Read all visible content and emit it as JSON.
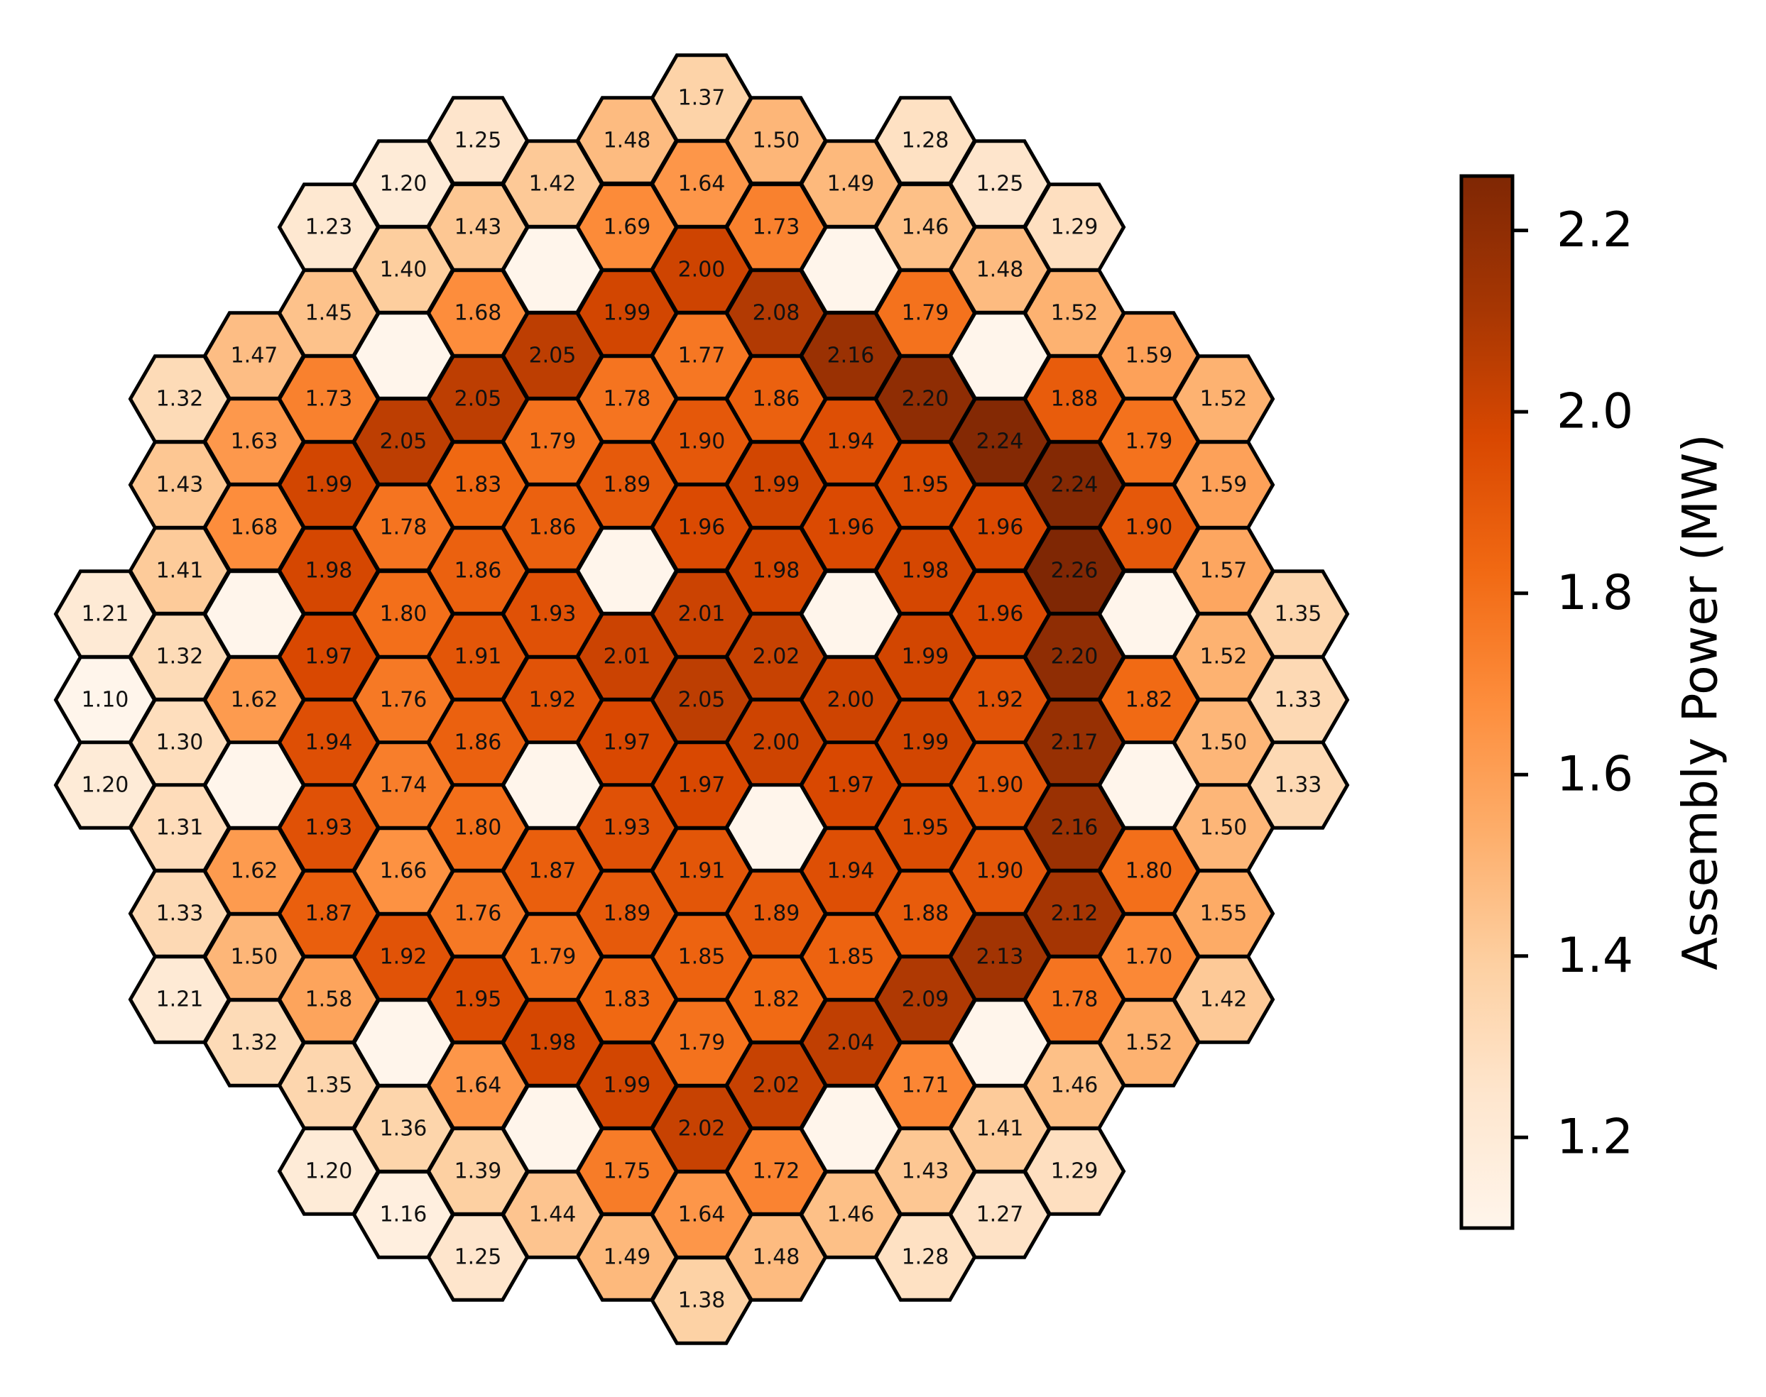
{
  "chart_data": {
    "type": "heatmap",
    "layout": "hexagonal core map",
    "title": "",
    "colorbar": {
      "label": "Assembly Power (MW)",
      "range": [
        1.1,
        2.26
      ],
      "ticks": [
        "1.2",
        "1.4",
        "1.6",
        "1.8",
        "2.0",
        "2.2"
      ],
      "colormap": "Oranges",
      "placement": "right"
    },
    "empty_cell_color": "#fff5eb",
    "columns": [
      {
        "col": -8,
        "values": [
          1.2,
          null,
          1.1,
          1.21
        ]
      },
      {
        "col": -7,
        "values": [
          1.31,
          1.3,
          1.32,
          1.41,
          1.43,
          1.32,
          1.21,
          1.33
        ]
      },
      {
        "col": -6,
        "values": [
          1.62,
          null,
          1.62,
          null,
          1.68,
          1.63,
          1.47,
          1.32,
          1.5,
          1.62
        ]
      },
      {
        "col": -5,
        "values": [
          1.93,
          1.94,
          1.97,
          1.98,
          1.99,
          1.73,
          1.45,
          1.35,
          1.58,
          1.87,
          null,
          1.23
        ]
      },
      {
        "col": -4,
        "values": [
          1.74,
          1.76,
          1.8,
          1.78,
          2.05,
          null,
          1.4,
          1.2,
          1.36,
          null,
          1.92,
          1.66,
          1.2,
          1.16
        ]
      },
      {
        "col": -3,
        "values": [
          1.8,
          1.86,
          1.91,
          1.86,
          1.83,
          2.05,
          1.68,
          1.43,
          1.25,
          1.39,
          1.64,
          1.95,
          1.76,
          1.25,
          1.44,
          1.44
        ]
      },
      {
        "col": -2,
        "values": [
          null,
          1.92,
          1.93,
          1.86,
          1.79,
          2.05,
          null,
          1.42,
          null,
          1.98,
          1.87,
          1.79,
          null,
          1.44
        ]
      }
    ],
    "center_columns_note": "values listed per hex cell in reading order below",
    "cells": [
      [
        -8,
        -1,
        1.21
      ],
      [
        -8,
        0,
        1.1
      ],
      [
        -8,
        1,
        1.2
      ],
      [
        -7,
        -4.5,
        1.32
      ],
      [
        -7,
        -3.5,
        1.43
      ],
      [
        -7,
        -2.5,
        1.41
      ],
      [
        -7,
        -1.5,
        1.32
      ],
      [
        -7,
        -0.5,
        1.3
      ],
      [
        -7,
        0.5,
        1.31
      ],
      [
        -7,
        1.5,
        1.33
      ],
      [
        -7,
        2.5,
        1.21
      ],
      [
        -6,
        -6,
        1.47
      ],
      [
        -6,
        -5,
        1.63
      ],
      [
        -6,
        -4,
        1.68
      ],
      [
        -6,
        -3,
        null
      ],
      [
        -6,
        -2,
        1.62
      ],
      [
        -6,
        -1,
        null
      ],
      [
        -6,
        0,
        1.62
      ],
      [
        -6,
        1,
        1.5
      ],
      [
        -6,
        2,
        1.32
      ],
      [
        -5,
        -7.5,
        1.23
      ],
      [
        -5,
        -6.5,
        1.45
      ],
      [
        -5,
        -5.5,
        1.73
      ],
      [
        -5,
        -4.5,
        1.99
      ],
      [
        -5,
        -3.5,
        1.98
      ],
      [
        -5,
        -2.5,
        1.97
      ],
      [
        -5,
        -1.5,
        1.94
      ],
      [
        -5,
        -0.5,
        1.93
      ],
      [
        -5,
        0.5,
        1.87
      ],
      [
        -5,
        1.5,
        1.58
      ],
      [
        -5,
        2.5,
        1.35
      ],
      [
        -5,
        3.5,
        1.2
      ],
      [
        -4,
        -9,
        1.2
      ],
      [
        -4,
        -8,
        1.4
      ],
      [
        -4,
        -7,
        null
      ],
      [
        -4,
        -6,
        2.05
      ],
      [
        -4,
        -5,
        1.78
      ],
      [
        -4,
        -4,
        1.8
      ],
      [
        -4,
        -3,
        1.76
      ],
      [
        -4,
        -2,
        1.74
      ],
      [
        -4,
        -1,
        1.66
      ],
      [
        -4,
        0,
        1.76
      ],
      [
        -4,
        1,
        1.92
      ],
      [
        -4,
        2,
        null
      ],
      [
        -4,
        3,
        1.36
      ],
      [
        -4,
        4,
        1.16
      ],
      [
        -3,
        -9.5,
        1.25
      ],
      [
        -3,
        -8.5,
        1.43
      ],
      [
        -3,
        -7.5,
        1.68
      ],
      [
        -3,
        -6.5,
        2.05
      ],
      [
        -3,
        -5.5,
        1.83
      ],
      [
        -3,
        -4.5,
        1.86
      ],
      [
        -3,
        -3.5,
        1.91
      ],
      [
        -3,
        -2.5,
        1.86
      ],
      [
        -3,
        -1.5,
        1.8
      ],
      [
        -3,
        -0.5,
        1.76
      ],
      [
        -3,
        0.5,
        1.95
      ],
      [
        -3,
        1.5,
        1.64
      ],
      [
        -3,
        2.5,
        1.39
      ],
      [
        -3,
        3.5,
        1.25
      ]
    ]
  }
}
